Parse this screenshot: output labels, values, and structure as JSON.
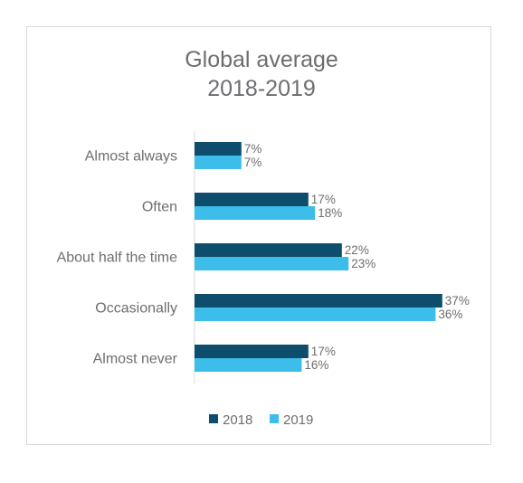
{
  "chart_data": {
    "type": "bar",
    "orientation": "horizontal",
    "title": "Global average",
    "subtitle": "2018-2019",
    "categories": [
      "Almost always",
      "Often",
      "About half the time",
      "Occasionally",
      "Almost never"
    ],
    "series": [
      {
        "name": "2018",
        "values": [
          7,
          17,
          22,
          37,
          17
        ],
        "labels": [
          "7%",
          "17%",
          "22%",
          "37%",
          "17%"
        ],
        "color": "#0e4d6b"
      },
      {
        "name": "2019",
        "values": [
          7,
          18,
          23,
          36,
          16
        ],
        "labels": [
          "7%",
          "18%",
          "23%",
          "36%",
          "16%"
        ],
        "color": "#3dbde9"
      }
    ],
    "unit": "%",
    "xlim": [
      0,
      38
    ],
    "grid": false,
    "legend": "bottom"
  }
}
